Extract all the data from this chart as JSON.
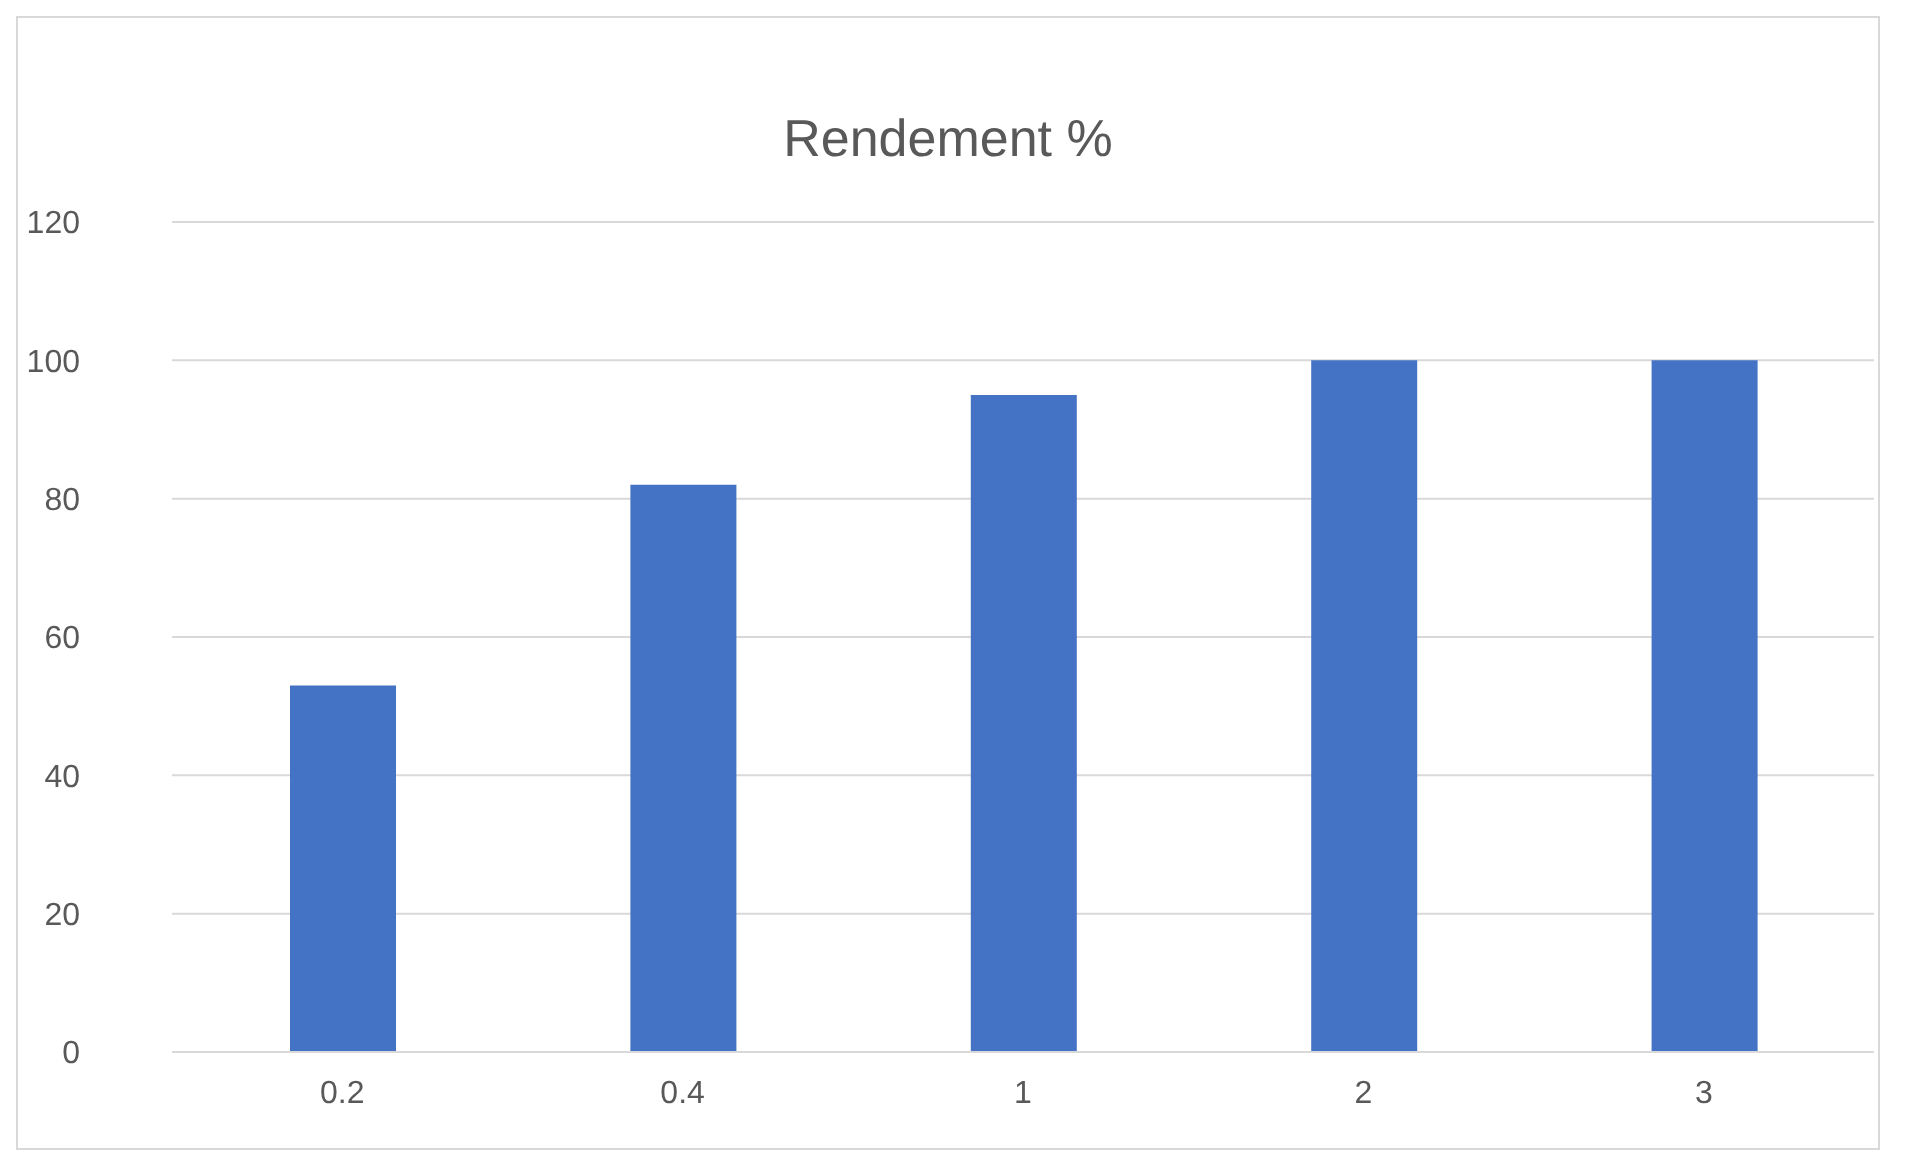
{
  "chart_data": {
    "type": "bar",
    "title": "Rendement %",
    "categories": [
      "0.2",
      "0.4",
      "1",
      "2",
      "3"
    ],
    "values": [
      53,
      82,
      95,
      100,
      100
    ],
    "color": "#4472c4",
    "ylim": [
      0,
      120
    ],
    "yticks": [
      0,
      20,
      40,
      60,
      80,
      100,
      120
    ],
    "grid": "y",
    "legend": false
  }
}
